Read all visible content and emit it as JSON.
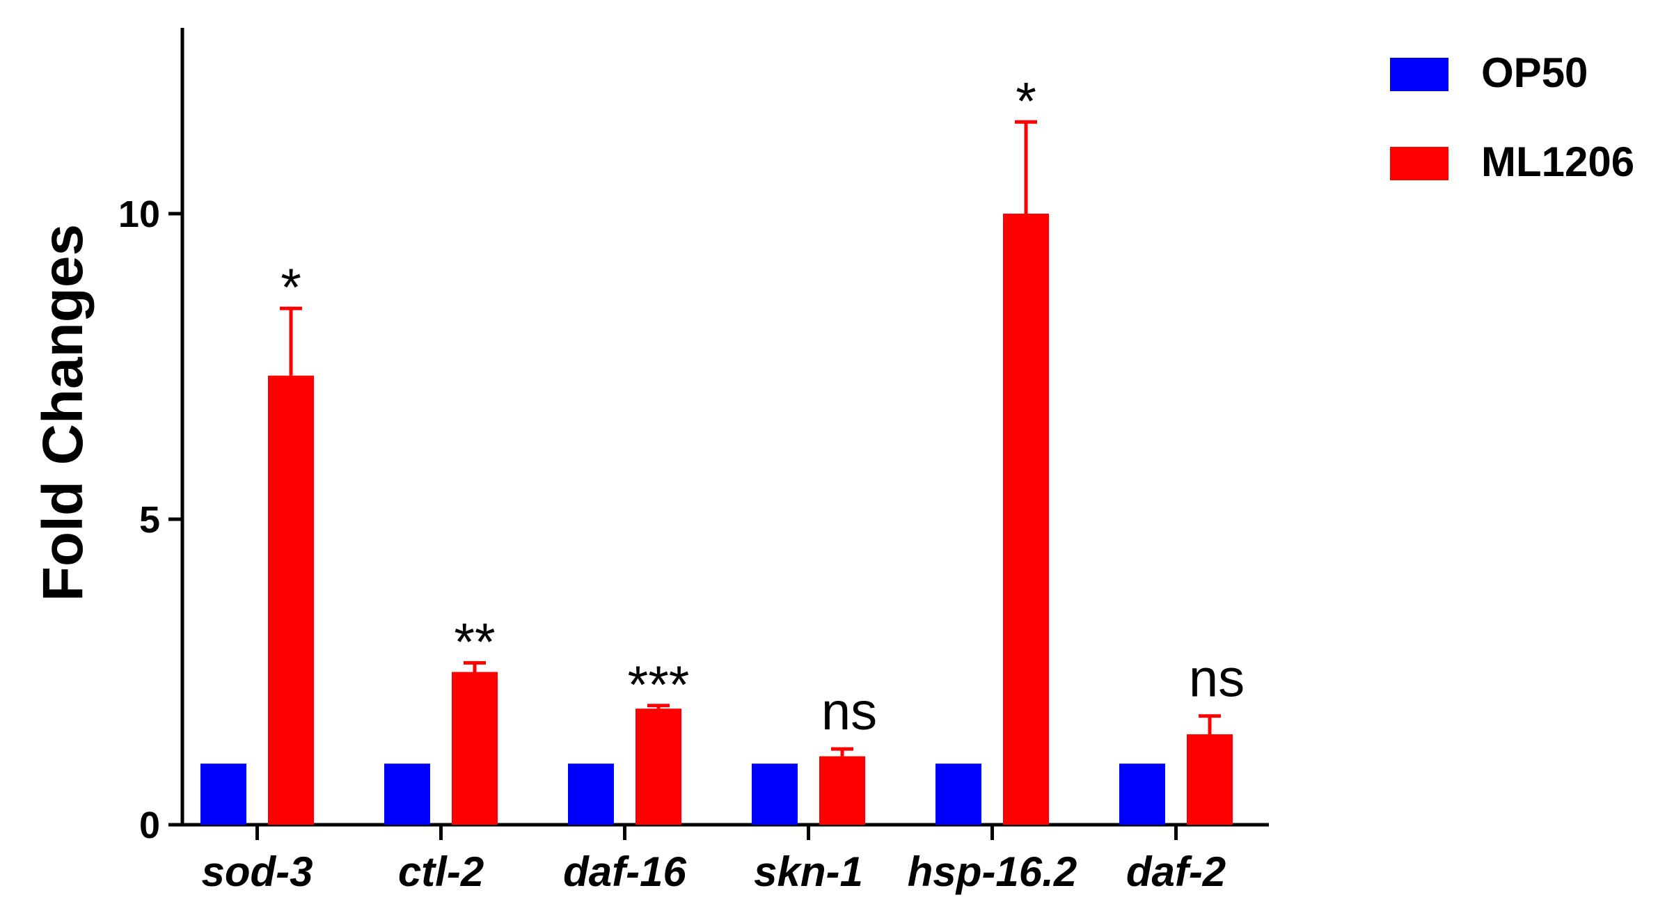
{
  "chart_data": {
    "type": "bar",
    "ylabel": "Fold Changes",
    "ylim": [
      0,
      13
    ],
    "yticks": [
      0,
      5,
      10
    ],
    "grid": false,
    "legend_position": "top-right",
    "categories": [
      "sod-3",
      "ctl-2",
      "daf-16",
      "skn-1",
      "hsp-16.2",
      "daf-2"
    ],
    "series": [
      {
        "name": "OP50",
        "color": "#0000ff",
        "values": [
          1,
          1,
          1,
          1,
          1,
          1
        ],
        "errors": [
          0,
          0,
          0,
          0,
          0,
          0
        ]
      },
      {
        "name": "ML1206",
        "color": "#ff0000",
        "values": [
          7.35,
          2.5,
          1.9,
          1.12,
          10.0,
          1.48
        ],
        "errors": [
          1.1,
          0.15,
          0.05,
          0.12,
          1.5,
          0.3
        ]
      }
    ],
    "annotations": [
      "*",
      "**",
      "***",
      "ns",
      "*",
      "ns"
    ]
  }
}
